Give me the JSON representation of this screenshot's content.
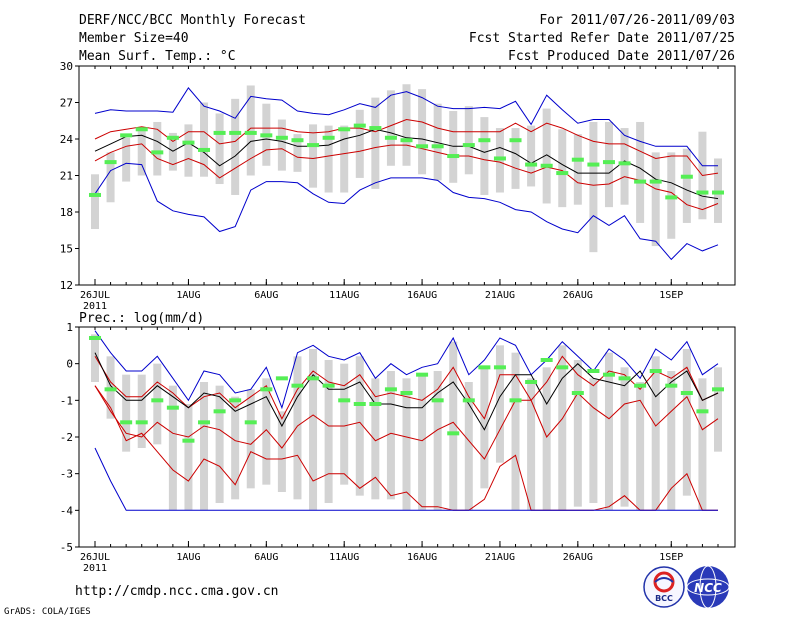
{
  "header": {
    "title": "DERF/NCC/BCC Monthly Forecast",
    "member_size": "Member Size=40",
    "variable": "Mean Surf. Temp.: °C",
    "period": "For 2011/07/26-2011/09/03",
    "fcst_started": "Fcst Started Refer Date 2011/07/25",
    "fcst_produced": "Fcst Produced Date 2011/07/26"
  },
  "footer": {
    "url": "http://cmdp.ncc.cma.gov.cn",
    "grads_credit": "GrADS: COLA/IGES",
    "logo_bcc_text": "BCC",
    "logo_ncc_text": "NCC"
  },
  "colors": {
    "extreme_line": "#0000cc",
    "spread_line": "#cc0000",
    "mean_line": "#000000",
    "box": "#d3d3d3",
    "obs_marker": "#55ee55"
  },
  "chart_data": [
    {
      "type": "line",
      "title": "Mean Surf. Temp.: °C",
      "days": 40,
      "x_tick_labels": [
        "26JUL",
        "1AUG",
        "6AUG",
        "11AUG",
        "16AUG",
        "21AUG",
        "26AUG",
        "1SEP"
      ],
      "x_tick_day_index": [
        0,
        6,
        11,
        16,
        21,
        26,
        31,
        37
      ],
      "year_label": "2011",
      "ylim": [
        12,
        30
      ],
      "y_ticks": [
        12,
        15,
        18,
        21,
        24,
        27,
        30
      ],
      "series": [
        {
          "name": "max",
          "color": "#0000cc",
          "values": [
            26.1,
            26.4,
            26.3,
            26.3,
            26.3,
            26.2,
            28.2,
            26.7,
            26.3,
            25.7,
            27.5,
            27.3,
            27.2,
            26.3,
            26.1,
            26.0,
            26.4,
            26.9,
            26.6,
            27.6,
            27.9,
            27.4,
            26.7,
            26.5,
            26.5,
            26.6,
            26.5,
            27.1,
            25.2,
            27.6,
            26.4,
            25.3,
            25.6,
            25.6,
            24.3,
            23.8,
            23.4,
            23.4,
            23.4,
            21.8,
            21.8
          ]
        },
        {
          "name": "upper",
          "color": "#cc0000",
          "values": [
            24.0,
            24.6,
            24.8,
            25.0,
            24.8,
            23.8,
            24.6,
            24.6,
            23.6,
            23.8,
            24.9,
            24.9,
            24.9,
            24.6,
            24.5,
            24.6,
            24.9,
            24.9,
            24.6,
            25.1,
            25.6,
            25.4,
            24.9,
            24.6,
            24.6,
            24.6,
            24.6,
            25.3,
            24.6,
            25.3,
            24.9,
            24.3,
            23.8,
            23.6,
            23.6,
            23.0,
            22.4,
            22.6,
            22.6,
            21.0,
            21.2
          ]
        },
        {
          "name": "mean",
          "color": "#000000",
          "values": [
            23.0,
            23.6,
            24.2,
            24.3,
            23.8,
            23.0,
            23.7,
            22.9,
            21.8,
            22.6,
            23.8,
            24.0,
            23.8,
            23.4,
            23.4,
            23.5,
            24.0,
            24.3,
            24.8,
            24.5,
            24.1,
            24.0,
            23.7,
            23.4,
            23.4,
            22.9,
            23.3,
            22.8,
            22.0,
            22.7,
            21.9,
            21.2,
            21.2,
            21.2,
            22.2,
            21.6,
            20.7,
            20.4,
            19.8,
            19.3,
            19.1
          ]
        },
        {
          "name": "lower",
          "color": "#cc0000",
          "values": [
            22.2,
            22.9,
            23.4,
            23.6,
            22.4,
            21.9,
            22.4,
            21.9,
            20.8,
            21.6,
            22.4,
            23.1,
            23.2,
            22.5,
            22.4,
            22.6,
            22.8,
            23.0,
            23.3,
            23.5,
            23.5,
            23.2,
            22.9,
            22.6,
            22.6,
            22.3,
            22.1,
            21.6,
            21.2,
            21.7,
            21.4,
            20.4,
            20.2,
            20.3,
            20.9,
            20.6,
            19.9,
            19.6,
            18.6,
            18.2,
            18.7
          ]
        },
        {
          "name": "min",
          "color": "#0000cc",
          "values": [
            19.5,
            21.4,
            22.0,
            21.9,
            18.9,
            18.1,
            17.8,
            17.6,
            16.4,
            16.8,
            19.8,
            20.5,
            20.5,
            20.4,
            19.5,
            18.8,
            18.7,
            19.8,
            20.4,
            20.8,
            20.8,
            20.8,
            20.6,
            19.6,
            19.2,
            19.1,
            18.8,
            18.2,
            18.0,
            17.2,
            16.6,
            16.3,
            17.7,
            16.9,
            17.7,
            15.8,
            15.6,
            14.1,
            15.4,
            14.8,
            15.3
          ]
        },
        {
          "name": "box_top",
          "color": "#d3d3d3",
          "values": [
            21.1,
            22.9,
            24.1,
            24.9,
            25.4,
            24.5,
            25.2,
            27.0,
            26.1,
            27.3,
            28.4,
            26.9,
            25.6,
            24.4,
            25.2,
            25.1,
            25.1,
            26.4,
            27.4,
            28.0,
            28.5,
            28.1,
            26.9,
            26.3,
            26.7,
            25.8,
            24.9,
            24.9,
            25.1,
            26.5,
            24.8,
            24.4,
            25.4,
            25.4,
            24.9,
            25.4,
            22.9,
            22.9,
            23.2,
            24.6,
            22.4
          ]
        },
        {
          "name": "box_bottom",
          "color": "#d3d3d3",
          "values": [
            16.6,
            18.8,
            20.5,
            21.0,
            21.0,
            21.4,
            20.9,
            20.9,
            20.3,
            19.4,
            21.0,
            21.8,
            21.4,
            21.3,
            20.0,
            19.6,
            19.6,
            20.8,
            19.9,
            21.8,
            21.8,
            21.1,
            20.6,
            20.4,
            21.1,
            19.4,
            19.6,
            19.9,
            20.1,
            18.7,
            18.4,
            18.6,
            14.7,
            18.4,
            18.6,
            17.1,
            15.2,
            15.8,
            17.1,
            17.4,
            17.1
          ]
        },
        {
          "name": "obs",
          "color": "#55ee55",
          "values": [
            19.4,
            22.1,
            24.3,
            24.8,
            22.9,
            24.1,
            23.7,
            23.1,
            24.5,
            24.5,
            24.5,
            24.3,
            24.1,
            23.9,
            23.5,
            24.1,
            24.8,
            25.1,
            24.9,
            24.1,
            23.9,
            23.4,
            23.4,
            22.6,
            23.5,
            23.9,
            22.4,
            23.9,
            21.9,
            21.8,
            21.2,
            22.3,
            21.9,
            22.1,
            22.0,
            20.5,
            20.5,
            19.2,
            20.9,
            19.6,
            19.6
          ]
        }
      ]
    },
    {
      "type": "line",
      "title": "Prec.: log(mm/d)",
      "days": 40,
      "x_tick_labels": [
        "26JUL",
        "1AUG",
        "6AUG",
        "11AUG",
        "16AUG",
        "21AUG",
        "26AUG",
        "1SEP"
      ],
      "x_tick_day_index": [
        0,
        6,
        11,
        16,
        21,
        26,
        31,
        37
      ],
      "year_label": "2011",
      "ylim": [
        -5,
        1
      ],
      "y_ticks": [
        -5,
        -4,
        -3,
        -2,
        -1,
        0,
        1
      ],
      "series": [
        {
          "name": "max",
          "color": "#0000cc",
          "values": [
            0.9,
            0.3,
            -0.2,
            -0.2,
            0.2,
            -0.4,
            -1.0,
            -0.2,
            -0.3,
            -0.8,
            -0.7,
            -0.1,
            -1.2,
            0.3,
            0.5,
            0.2,
            0.1,
            0.3,
            -0.4,
            0.0,
            -0.3,
            -0.1,
            0.0,
            0.7,
            -0.3,
            0.1,
            0.7,
            0.5,
            -0.3,
            0.1,
            0.6,
            0.2,
            -0.2,
            0.4,
            0.1,
            -0.4,
            0.4,
            0.1,
            0.6,
            -0.3,
            0.0
          ]
        },
        {
          "name": "upper",
          "color": "#cc0000",
          "values": [
            0.2,
            -0.5,
            -0.9,
            -0.9,
            -0.5,
            -0.8,
            -1.2,
            -0.9,
            -0.8,
            -1.2,
            -0.9,
            -0.6,
            -1.5,
            -0.7,
            -0.2,
            -0.5,
            -0.6,
            -0.3,
            -0.9,
            -0.8,
            -0.9,
            -1.0,
            -0.7,
            -0.1,
            -0.9,
            -1.5,
            -0.3,
            -0.3,
            -1.0,
            -0.5,
            0.2,
            -0.3,
            -0.6,
            -0.2,
            -0.3,
            -0.7,
            -0.2,
            -0.4,
            -0.1,
            -1.0,
            -0.8
          ]
        },
        {
          "name": "mean",
          "color": "#000000",
          "values": [
            0.3,
            -0.6,
            -1.0,
            -1.0,
            -0.6,
            -0.9,
            -1.2,
            -0.8,
            -0.9,
            -1.3,
            -1.1,
            -0.9,
            -1.7,
            -0.9,
            -0.3,
            -0.7,
            -0.7,
            -0.5,
            -1.1,
            -1.1,
            -1.2,
            -1.2,
            -0.8,
            -0.5,
            -1.1,
            -1.8,
            -0.9,
            -0.3,
            -0.3,
            -1.1,
            -0.4,
            0.0,
            -0.4,
            -0.5,
            -0.6,
            -0.2,
            -0.9,
            -0.5,
            -0.2,
            -1.0,
            -0.8
          ]
        },
        {
          "name": "lower",
          "color": "#cc0000",
          "values": [
            -0.6,
            -1.3,
            -1.9,
            -2.0,
            -1.6,
            -1.9,
            -2.0,
            -1.7,
            -1.8,
            -2.1,
            -2.2,
            -1.8,
            -2.3,
            -1.7,
            -1.4,
            -1.7,
            -1.7,
            -1.6,
            -2.1,
            -1.9,
            -2.0,
            -2.1,
            -1.8,
            -1.6,
            -2.1,
            -2.6,
            -1.8,
            -1.0,
            -1.0,
            -2.0,
            -1.5,
            -0.8,
            -1.2,
            -1.5,
            -1.1,
            -1.0,
            -1.7,
            -1.3,
            -0.9,
            -1.8,
            -1.5
          ]
        },
        {
          "name": "lowest",
          "color": "#cc0000",
          "values": [
            -0.6,
            -1.2,
            -2.1,
            -1.9,
            -2.4,
            -2.9,
            -3.2,
            -2.6,
            -2.8,
            -3.3,
            -2.4,
            -2.6,
            -2.6,
            -2.5,
            -3.2,
            -3.0,
            -3.0,
            -3.4,
            -3.1,
            -3.6,
            -3.5,
            -3.9,
            -3.9,
            -4.0,
            -4.0,
            -3.7,
            -2.8,
            -2.5,
            -4.0,
            -4.0,
            -4.0,
            -4.0,
            -4.0,
            -3.9,
            -3.6,
            -4.0,
            -4.0,
            -3.4,
            -3.0,
            -4.0,
            -4.0
          ]
        },
        {
          "name": "min",
          "color": "#0000cc",
          "values": [
            -2.3,
            -3.2,
            -4.0,
            -4.0,
            -4.0,
            -4.0,
            -4.0,
            -4.0,
            -4.0,
            -4.0,
            -4.0,
            -4.0,
            -4.0,
            -4.0,
            -4.0,
            -4.0,
            -4.0,
            -4.0,
            -4.0,
            -4.0,
            -4.0,
            -4.0,
            -4.0,
            -4.0,
            -4.0,
            -4.0,
            -4.0,
            -4.0,
            -4.0,
            -4.0,
            -4.0,
            -4.0,
            -4.0,
            -4.0,
            -4.0,
            -4.0,
            -4.0,
            -4.0,
            -4.0,
            -4.0,
            -4.0
          ]
        },
        {
          "name": "box_top",
          "color": "#d3d3d3",
          "values": [
            0.8,
            0.2,
            -0.3,
            -0.3,
            0.0,
            -0.6,
            -1.1,
            -0.5,
            -0.6,
            -0.9,
            -0.7,
            -0.4,
            -1.3,
            0.2,
            0.4,
            0.1,
            0.0,
            0.2,
            -0.4,
            -0.2,
            -0.4,
            -0.3,
            -0.2,
            0.6,
            -0.5,
            -0.1,
            0.5,
            0.3,
            -0.4,
            -0.1,
            0.5,
            0.1,
            -0.4,
            0.3,
            -0.1,
            -0.5,
            0.2,
            -0.2,
            0.4,
            -0.4,
            -0.1
          ]
        },
        {
          "name": "box_bottom",
          "color": "#d3d3d3",
          "values": [
            -0.5,
            -1.5,
            -2.4,
            -2.3,
            -2.2,
            -4.0,
            -4.0,
            -4.0,
            -3.8,
            -3.7,
            -3.4,
            -3.3,
            -3.5,
            -3.7,
            -4.0,
            -3.8,
            -3.3,
            -3.6,
            -3.7,
            -3.7,
            -4.0,
            -4.0,
            -4.0,
            -4.0,
            -4.0,
            -3.4,
            -2.7,
            -4.0,
            -4.0,
            -4.0,
            -4.0,
            -3.9,
            -3.8,
            -4.0,
            -3.9,
            -4.0,
            -4.0,
            -4.0,
            -3.6,
            -4.0,
            -2.4
          ]
        },
        {
          "name": "obs",
          "color": "#55ee55",
          "values": [
            0.7,
            -0.7,
            -1.6,
            -1.6,
            -1.0,
            -1.2,
            -2.1,
            -1.6,
            -1.3,
            -1.0,
            -1.6,
            -0.7,
            -0.4,
            -0.6,
            -0.4,
            -0.6,
            -1.0,
            -1.1,
            -1.1,
            -0.7,
            -0.8,
            -0.3,
            -1.0,
            -1.9,
            -1.0,
            -0.1,
            -0.1,
            -1.0,
            -0.5,
            0.1,
            -0.1,
            -0.8,
            -0.2,
            -0.3,
            -0.4,
            -0.6,
            -0.2,
            -0.6,
            -0.8,
            -1.3,
            -0.7
          ]
        }
      ]
    }
  ]
}
